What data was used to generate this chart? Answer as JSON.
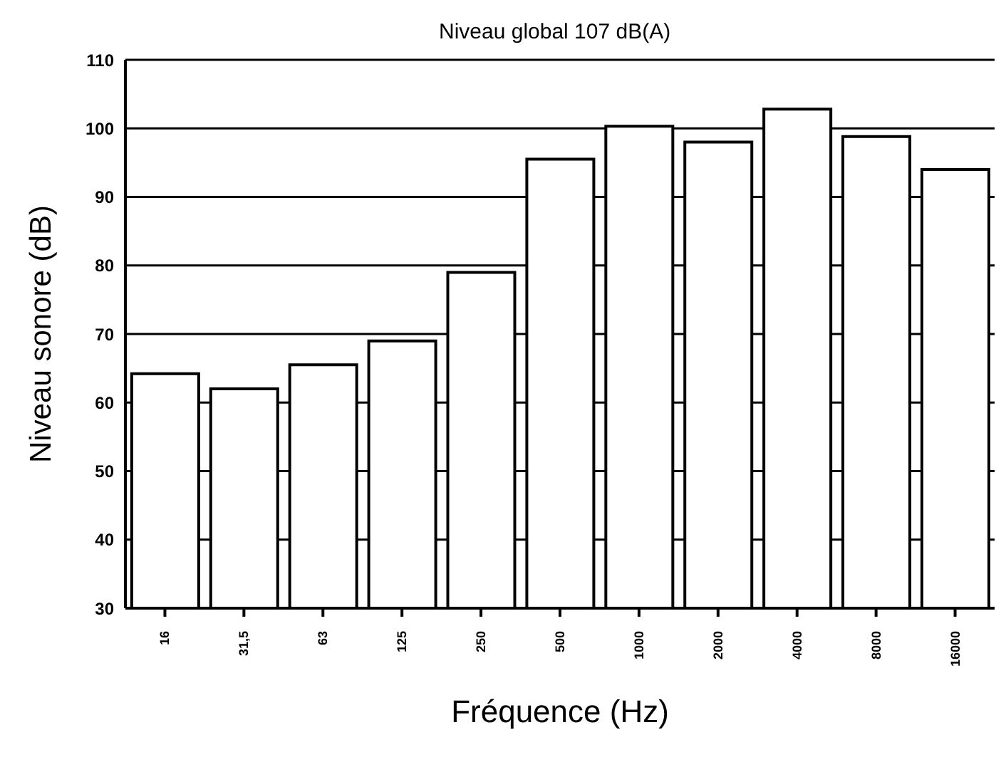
{
  "chart_data": {
    "type": "bar",
    "title": "Niveau global 107 dB(A)",
    "xlabel": "Fréquence (Hz)",
    "ylabel": "Niveau sonore (dB)",
    "categories": [
      "16",
      "31,5",
      "63",
      "125",
      "250",
      "500",
      "1000",
      "2000",
      "4000",
      "8000",
      "16000"
    ],
    "values": [
      64.2,
      62,
      65.5,
      69,
      79,
      95.5,
      100.3,
      98,
      102.8,
      98.8,
      94
    ],
    "color": "#ffffff",
    "ylim": [
      30,
      110
    ],
    "yticks": [
      30,
      40,
      50,
      60,
      70,
      80,
      90,
      100,
      110
    ],
    "grid": "y"
  }
}
